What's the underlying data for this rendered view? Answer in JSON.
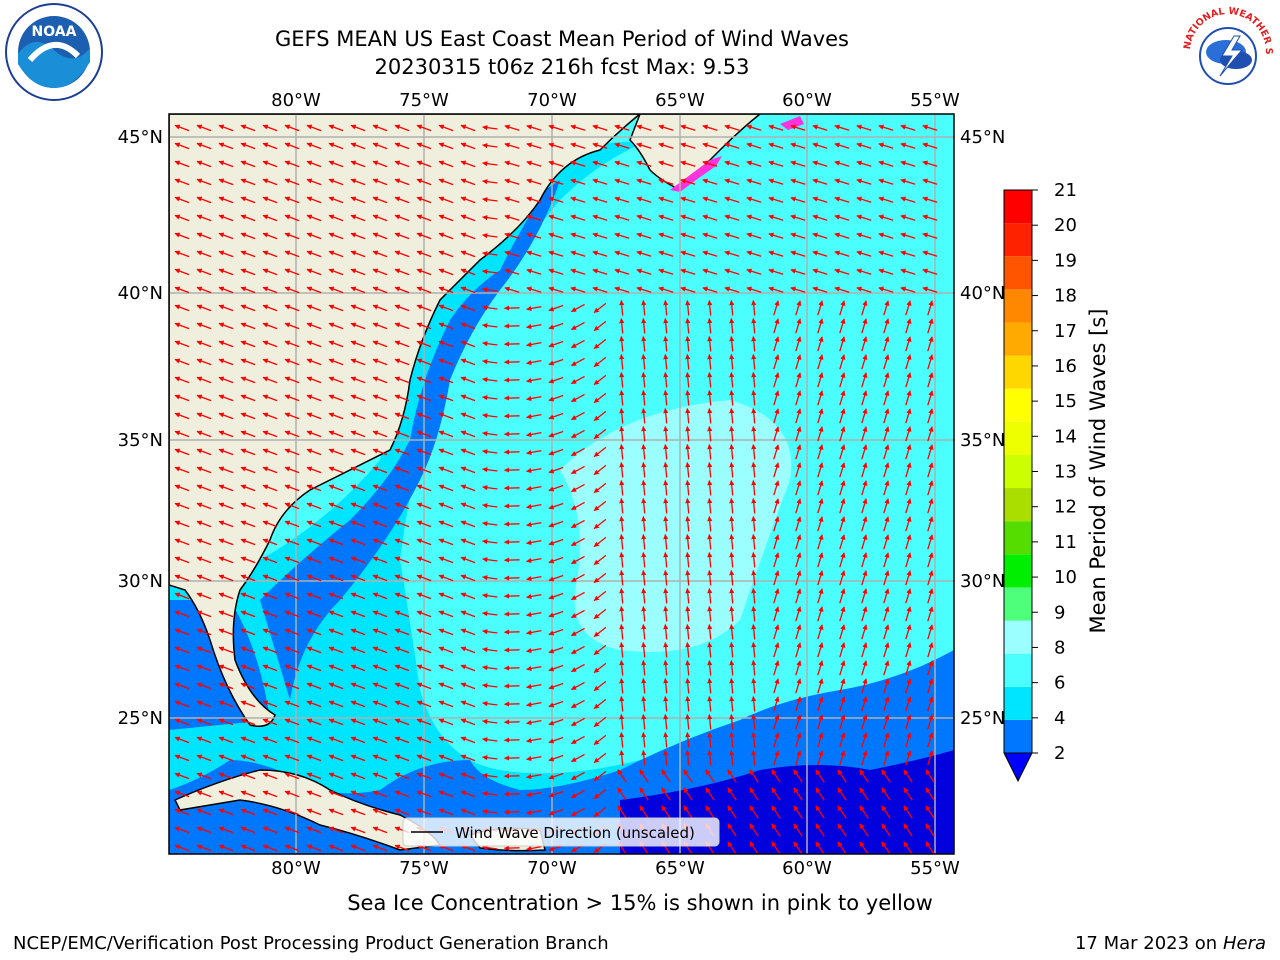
{
  "header": {
    "title_line1": "GEFS MEAN US East Coast Mean Period of Wind Waves",
    "title_line2": "20230315 t06z 216h fcst   Max: 9.53"
  },
  "logos": {
    "left": "noaa-logo",
    "right": "nws-logo",
    "noaa_text": "NOAA",
    "nws_text": "NATIONAL WEATHER SERVICE"
  },
  "map": {
    "lon_labels": [
      "80°W",
      "75°W",
      "70°W",
      "65°W",
      "60°W",
      "55°W"
    ],
    "lat_labels": [
      "45°N",
      "40°N",
      "35°N",
      "30°N",
      "25°N"
    ],
    "legend_label": "Wind Wave Direction (unscaled)",
    "colors": {
      "land": "#f0eedc",
      "arrow": "#ff0000",
      "grid": "#b0b0b0"
    }
  },
  "colorbar": {
    "label": "Mean Period of Wind Waves [s]",
    "ticks": [
      "2",
      "4",
      "6",
      "8",
      "9",
      "10",
      "11",
      "12",
      "13",
      "14",
      "15",
      "16",
      "17",
      "18",
      "19",
      "20",
      "21"
    ],
    "colors": [
      "#0077ff",
      "#00e5ff",
      "#4bffff",
      "#9bffff",
      "#4dff7a",
      "#00ee00",
      "#55dd00",
      "#aadd00",
      "#ccff00",
      "#eeff00",
      "#ffff00",
      "#ffd700",
      "#ffaa00",
      "#ff8800",
      "#ff5500",
      "#ff2200",
      "#ff0000"
    ]
  },
  "footer": {
    "subtitle": "Sea Ice Concentration > 15% is shown in pink to yellow",
    "credit": "NCEP/EMC/Verification Post Processing Product Generation Branch",
    "date": "17 Mar 2023 on",
    "machine": "Hera"
  }
}
